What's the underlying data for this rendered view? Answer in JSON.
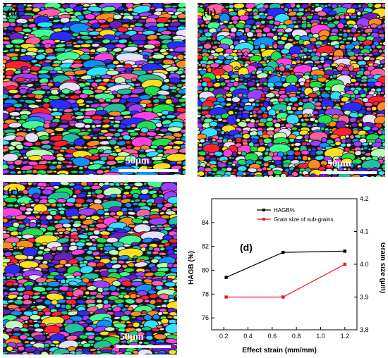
{
  "panels": [
    {
      "label": "(a)",
      "scale_bar": "50μm"
    },
    {
      "label": "(b)",
      "scale_bar": "50μm"
    },
    {
      "label": "(c)",
      "scale_bar": "50μm"
    }
  ],
  "palette": [
    "#2b2bff",
    "#1fe04a",
    "#ff2030",
    "#9a40ff",
    "#ff40e0",
    "#30e0ff",
    "#ffe020",
    "#ff8a20",
    "#40ff90",
    "#c0ffb0",
    "#6a20c0",
    "#1090ff",
    "#e8e0ff",
    "#ff60a0",
    "#20c0a0"
  ],
  "chart_data": {
    "type": "line",
    "panel_label": "(d)",
    "xlabel": "Effect strain (mm/mm)",
    "ylabel_left": "HAGB (%)",
    "ylabel_right": "Grain size (μm)",
    "xlim": [
      0.1,
      1.3
    ],
    "ylim_left": [
      75,
      86
    ],
    "ylim_right": [
      3.8,
      4.2
    ],
    "x_ticks": [
      "0.2",
      "0.4",
      "0.6",
      "0.8",
      "1.0",
      "1.2"
    ],
    "y_left_ticks": [
      "76",
      "78",
      "80",
      "82",
      "84"
    ],
    "y_right_ticks": [
      "3.8",
      "3.9",
      "4.0",
      "4.1",
      "4.2"
    ],
    "legend_position": "top-center",
    "series": [
      {
        "name": "HAGB%",
        "axis": "left",
        "color": "#000000",
        "x": [
          0.22,
          0.69,
          1.2
        ],
        "y": [
          79.4,
          81.5,
          81.6
        ]
      },
      {
        "name": "Grain size of sub-grains",
        "axis": "right",
        "color": "#e8161a",
        "x": [
          0.22,
          0.69,
          1.2
        ],
        "y": [
          3.9,
          3.9,
          4.0
        ]
      }
    ]
  }
}
